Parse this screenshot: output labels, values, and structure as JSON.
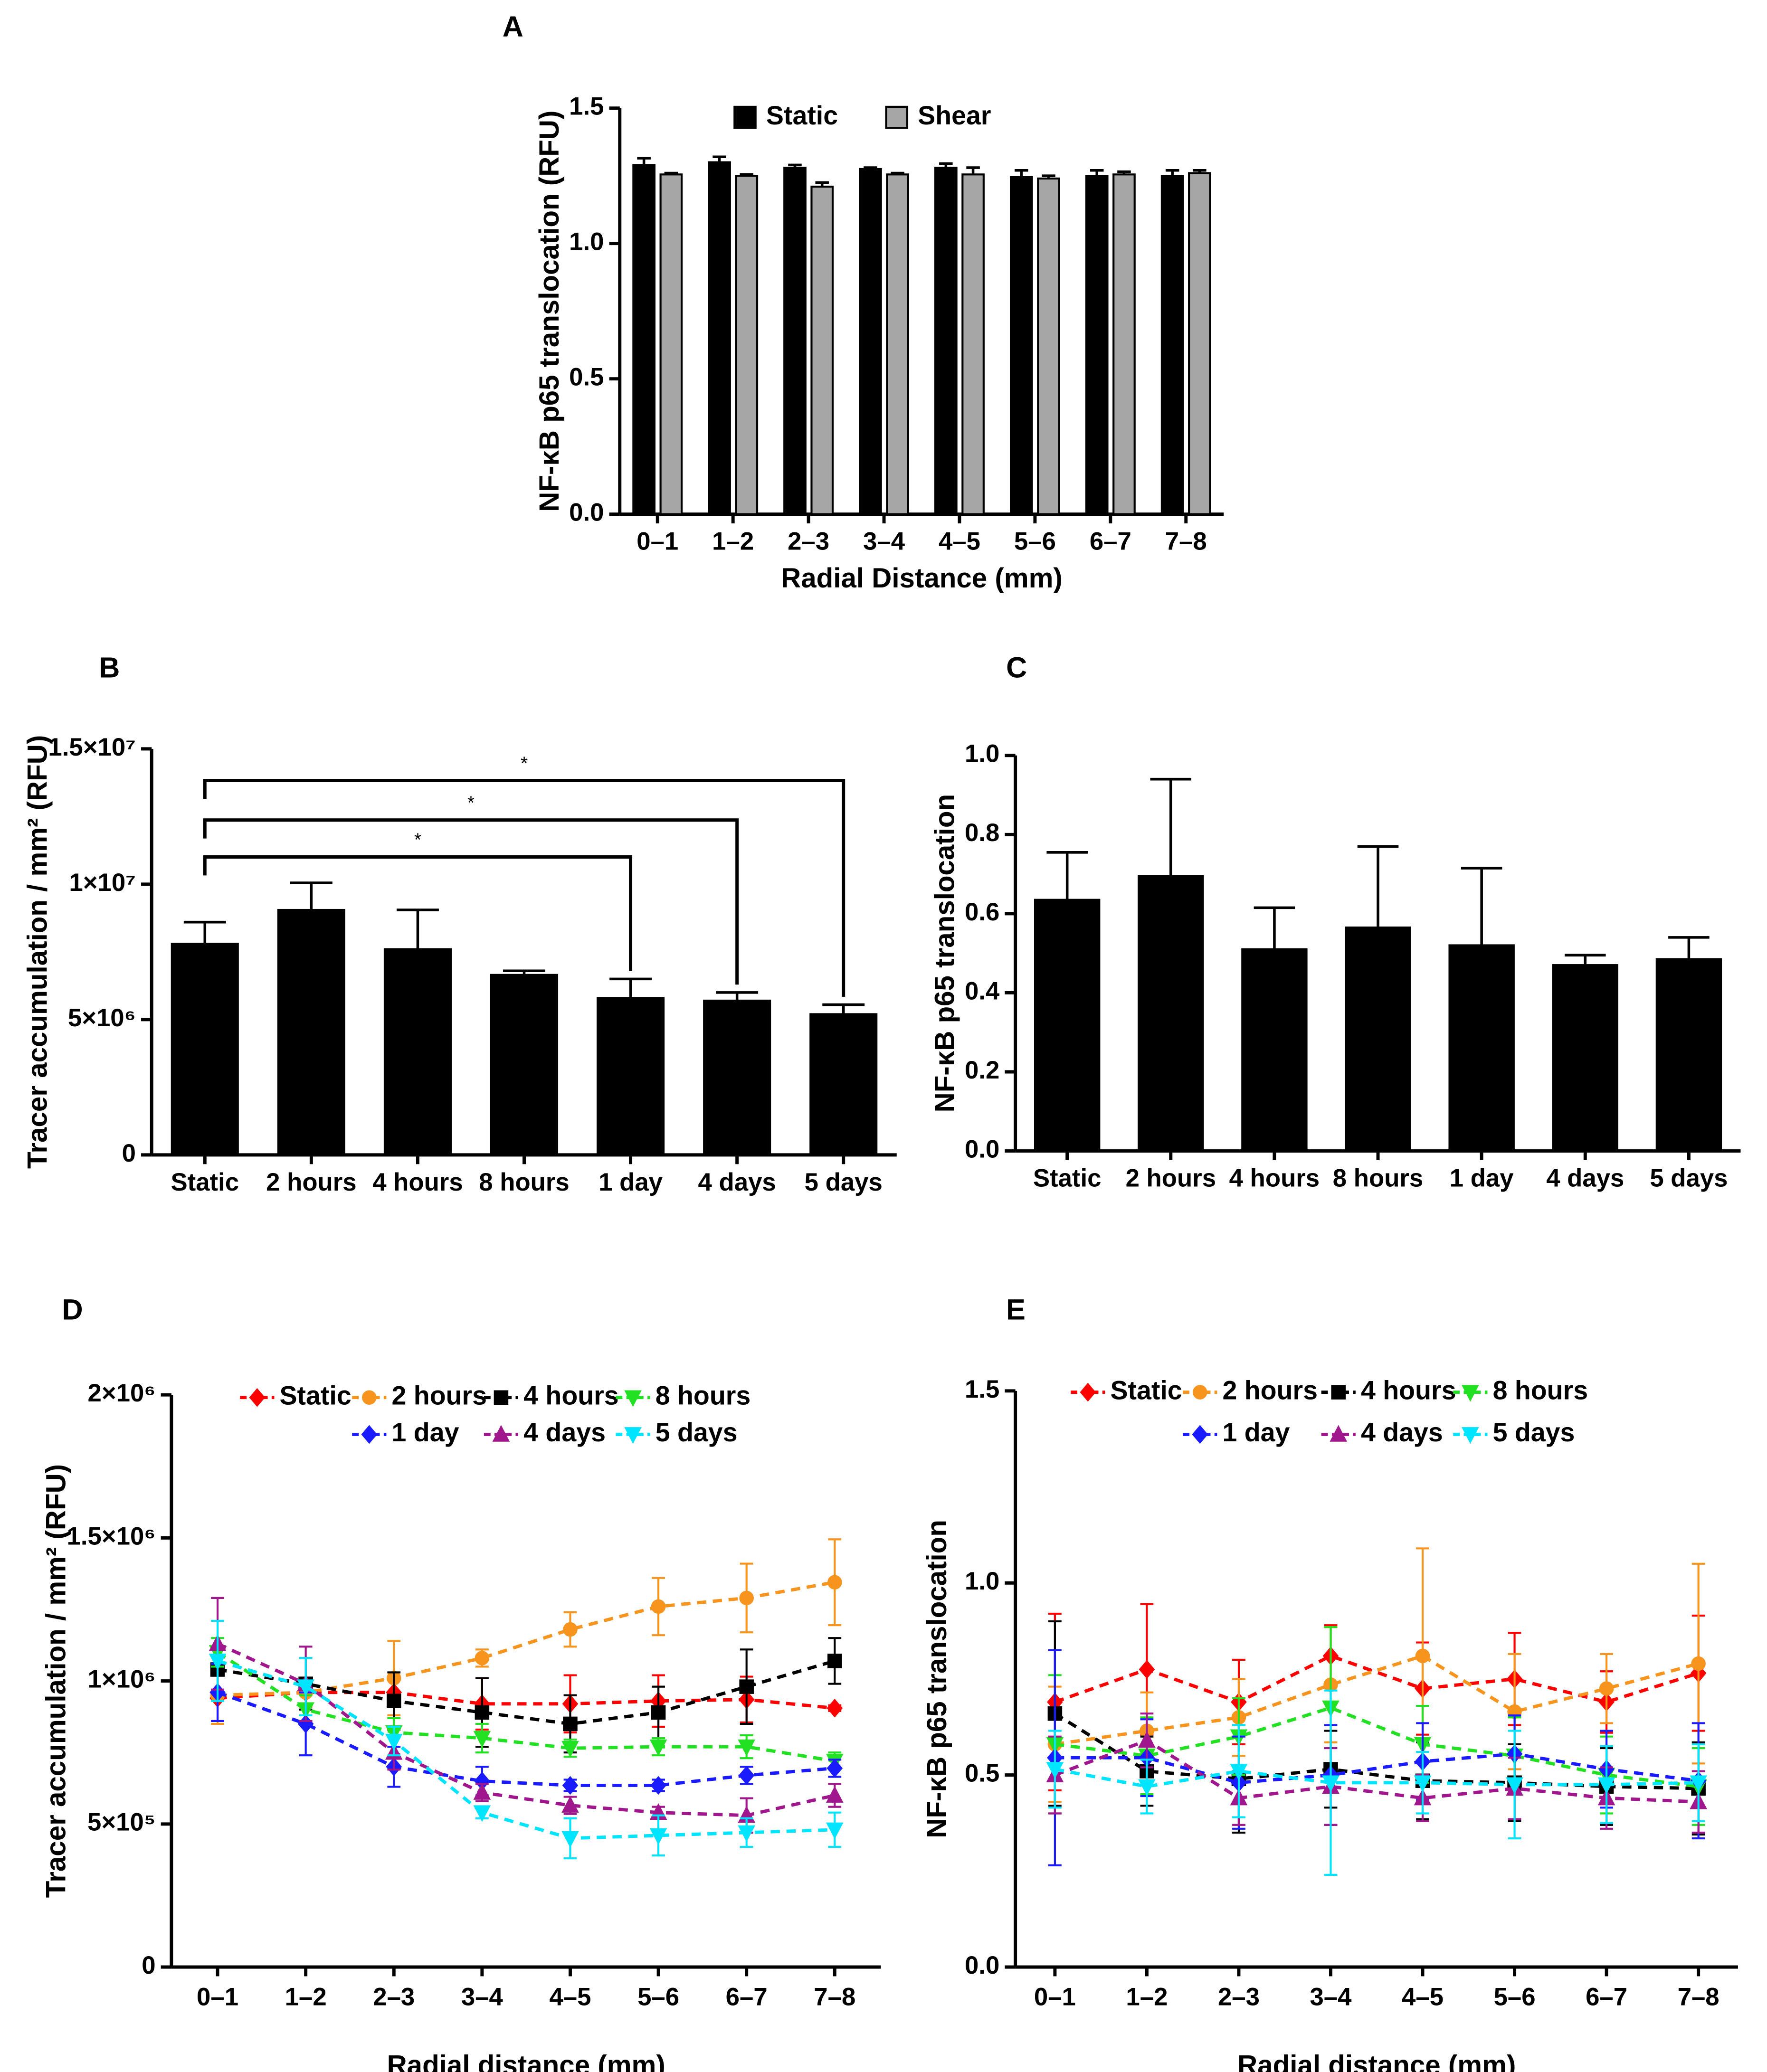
{
  "chart_data": [
    {
      "type": "bar",
      "panel": "A",
      "xlabel": "Radial Distance (mm)",
      "ylabel": "NF-κB p65 translocation (RFU)",
      "categories": [
        "0–1",
        "1–2",
        "2–3",
        "3–4",
        "4–5",
        "5–6",
        "6–7",
        "7–8"
      ],
      "series": [
        {
          "name": "Static",
          "color": "#000000",
          "values": [
            1.29,
            1.3,
            1.28,
            1.275,
            1.28,
            1.245,
            1.25,
            1.25
          ],
          "errors": [
            0.025,
            0.02,
            0.01,
            0.005,
            0.015,
            0.025,
            0.02,
            0.02
          ]
        },
        {
          "name": "Shear",
          "color": "#a6a6a6",
          "values": [
            1.255,
            1.25,
            1.21,
            1.255,
            1.255,
            1.24,
            1.255,
            1.26
          ],
          "errors": [
            0.005,
            0.005,
            0.015,
            0.005,
            0.025,
            0.01,
            0.01,
            0.01
          ]
        }
      ],
      "ylim": [
        0,
        1.5
      ],
      "yticks": [
        {
          "value": 0,
          "label": "0.0"
        },
        0.5,
        {
          "value": 1,
          "label": "1.0"
        },
        1.5
      ],
      "legend": "top"
    },
    {
      "type": "bar",
      "panel": "B",
      "ylabel": "Tracer accumulation / mm² (RFU)",
      "categories": [
        "Static",
        "2 hours",
        "4 hours",
        "8 hours",
        "1 day",
        "4 days",
        "5 days"
      ],
      "series": [
        {
          "color": "#000000",
          "values": [
            7800000,
            9050000,
            7600000,
            6650000,
            5800000,
            5700000,
            5200000
          ],
          "errors": [
            800000,
            1000000,
            1450000,
            150000,
            700000,
            300000,
            350000
          ]
        }
      ],
      "ylim": [
        0,
        15000000
      ],
      "yticks": [
        0,
        {
          "value": 5000000,
          "label": "5×10⁶"
        },
        {
          "value": 10000000,
          "label": "1×10⁷"
        },
        {
          "value": 15000000,
          "label": "1.5×10⁷"
        }
      ],
      "significance": [
        {
          "from": 0,
          "to": 4,
          "label": "*"
        },
        {
          "from": 0,
          "to": 5,
          "label": "*"
        },
        {
          "from": 0,
          "to": 6,
          "label": "*"
        }
      ]
    },
    {
      "type": "bar",
      "panel": "C",
      "ylabel": "NF-κB p65 translocation",
      "categories": [
        "Static",
        "2 hours",
        "4 hours",
        "8 hours",
        "1 day",
        "4 days",
        "5 days"
      ],
      "series": [
        {
          "color": "#000000",
          "values": [
            0.635,
            0.695,
            0.51,
            0.565,
            0.52,
            0.47,
            0.485
          ],
          "errors": [
            0.12,
            0.245,
            0.105,
            0.205,
            0.195,
            0.025,
            0.055
          ]
        }
      ],
      "ylim": [
        0,
        1
      ],
      "yticks": [
        {
          "value": 0,
          "label": "0.0"
        },
        0.2,
        0.4,
        0.6,
        0.8,
        {
          "value": 1,
          "label": "1.0"
        }
      ]
    },
    {
      "type": "line",
      "panel": "D",
      "xlabel": "Radial distance (mm)",
      "ylabel": "Tracer accumulation / mm² (RFU)",
      "categories": [
        "0–1",
        "1–2",
        "2–3",
        "3–4",
        "4–5",
        "5–6",
        "6–7",
        "7–8"
      ],
      "series": [
        {
          "name": "Static",
          "color": "#ff0000",
          "marker": "diamond",
          "values": [
            940000,
            960000,
            960000,
            920000,
            920000,
            930000,
            935000,
            905000
          ],
          "errors": [
            80000,
            40000,
            50000,
            90000,
            100000,
            90000,
            80000,
            10000
          ]
        },
        {
          "name": "2 hours",
          "color": "#f7941d",
          "marker": "circle",
          "values": [
            950000,
            960000,
            1010000,
            1080000,
            1180000,
            1260000,
            1290000,
            1345000
          ],
          "errors": [
            100000,
            50000,
            130000,
            30000,
            60000,
            100000,
            120000,
            150000
          ]
        },
        {
          "name": "4 hours",
          "color": "#000000",
          "marker": "square",
          "values": [
            1040000,
            990000,
            930000,
            890000,
            850000,
            890000,
            980000,
            1070000
          ],
          "errors": [
            80000,
            90000,
            100000,
            120000,
            100000,
            90000,
            130000,
            80000
          ]
        },
        {
          "name": "8 hours",
          "color": "#22e022",
          "marker": "triangle-down",
          "values": [
            1100000,
            900000,
            820000,
            800000,
            765000,
            770000,
            770000,
            720000
          ],
          "errors": [
            50000,
            50000,
            50000,
            50000,
            30000,
            30000,
            40000,
            30000
          ]
        },
        {
          "name": "1 day",
          "color": "#1a1aff",
          "marker": "diamond",
          "values": [
            960000,
            850000,
            700000,
            650000,
            635000,
            635000,
            670000,
            695000
          ],
          "errors": [
            100000,
            110000,
            70000,
            50000,
            20000,
            20000,
            30000,
            30000
          ]
        },
        {
          "name": "4 days",
          "color": "#a0168c",
          "marker": "triangle",
          "values": [
            1130000,
            990000,
            750000,
            610000,
            565000,
            540000,
            530000,
            600000
          ],
          "errors": [
            160000,
            130000,
            60000,
            30000,
            30000,
            20000,
            60000,
            40000
          ]
        },
        {
          "name": "5 days",
          "color": "#00e5ff",
          "marker": "triangle-down",
          "values": [
            1070000,
            980000,
            790000,
            540000,
            450000,
            460000,
            470000,
            480000
          ],
          "errors": [
            140000,
            100000,
            50000,
            20000,
            70000,
            70000,
            50000,
            60000
          ]
        }
      ],
      "ylim": [
        0,
        2000000
      ],
      "yticks": [
        0,
        {
          "value": 500000,
          "label": "5×10⁵"
        },
        {
          "value": 1000000,
          "label": "1×10⁶"
        },
        {
          "value": 1500000,
          "label": "1.5×10⁶"
        },
        {
          "value": 2000000,
          "label": "2×10⁶"
        }
      ],
      "legend": "top"
    },
    {
      "type": "line",
      "panel": "E",
      "xlabel": "Radial distance (mm)",
      "ylabel": "NF-κB p65 translocation",
      "categories": [
        "0–1",
        "1–2",
        "2–3",
        "3–4",
        "4–5",
        "5–6",
        "6–7",
        "7–8"
      ],
      "series": [
        {
          "name": "Static",
          "color": "#ff0000",
          "marker": "diamond",
          "values": [
            0.69,
            0.775,
            0.69,
            0.81,
            0.725,
            0.75,
            0.69,
            0.765
          ],
          "errors": [
            0.23,
            0.17,
            0.11,
            0.08,
            0.12,
            0.12,
            0.08,
            0.15
          ]
        },
        {
          "name": "2 hours",
          "color": "#f7941d",
          "marker": "circle",
          "values": [
            0.58,
            0.615,
            0.65,
            0.735,
            0.81,
            0.665,
            0.725,
            0.79
          ],
          "errors": [
            0.15,
            0.1,
            0.1,
            0.15,
            0.28,
            0.15,
            0.09,
            0.26
          ]
        },
        {
          "name": "4 hours",
          "color": "#000000",
          "marker": "square",
          "values": [
            0.66,
            0.51,
            0.49,
            0.515,
            0.485,
            0.48,
            0.47,
            0.465
          ],
          "errors": [
            0.24,
            0.09,
            0.14,
            0.1,
            0.1,
            0.1,
            0.1,
            0.12
          ]
        },
        {
          "name": "8 hours",
          "color": "#22e022",
          "marker": "triangle-down",
          "values": [
            0.58,
            0.55,
            0.6,
            0.675,
            0.58,
            0.55,
            0.5,
            0.47
          ],
          "errors": [
            0.18,
            0.1,
            0.1,
            0.21,
            0.1,
            0.1,
            0.1,
            0.1
          ]
        },
        {
          "name": "1 day",
          "color": "#1a1aff",
          "marker": "diamond",
          "values": [
            0.545,
            0.545,
            0.48,
            0.5,
            0.535,
            0.555,
            0.515,
            0.485
          ],
          "errors": [
            0.28,
            0.1,
            0.12,
            0.13,
            0.1,
            0.1,
            0.1,
            0.15
          ]
        },
        {
          "name": "4 days",
          "color": "#a0168c",
          "marker": "triangle",
          "values": [
            0.5,
            0.59,
            0.44,
            0.47,
            0.44,
            0.465,
            0.44,
            0.43
          ],
          "errors": [
            0.1,
            0.07,
            0.07,
            0.1,
            0.06,
            0.08,
            0.08,
            0.08
          ]
        },
        {
          "name": "5 days",
          "color": "#00e5ff",
          "marker": "triangle-down",
          "values": [
            0.515,
            0.47,
            0.51,
            0.48,
            0.48,
            0.475,
            0.475,
            0.48
          ],
          "errors": [
            0.1,
            0.07,
            0.12,
            0.24,
            0.08,
            0.14,
            0.1,
            0.1
          ]
        }
      ],
      "ylim": [
        0,
        1.5
      ],
      "yticks": [
        {
          "value": 0,
          "label": "0.0"
        },
        0.5,
        {
          "value": 1,
          "label": "1.0"
        },
        1.5
      ],
      "legend": "top"
    }
  ]
}
